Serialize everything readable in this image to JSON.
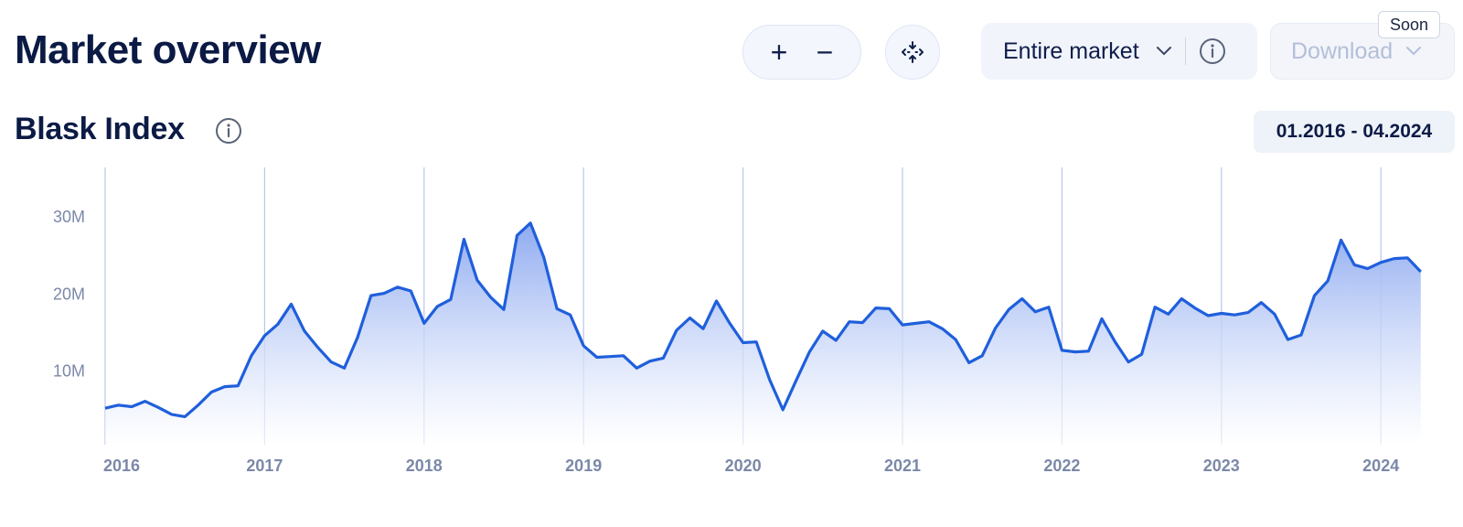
{
  "header": {
    "title": "Market overview",
    "zoom_in_label": "+",
    "zoom_out_label": "−",
    "fit_icon": "collapse-arrows-icon",
    "market_select_value": "Entire market",
    "download_label": "Download",
    "soon_badge": "Soon"
  },
  "section": {
    "title": "Blask Index",
    "date_range": "01.2016 - 04.2024"
  },
  "colors": {
    "line": "#1f5fdc",
    "area_top": "#8eaaf0",
    "area_bottom": "#ffffff",
    "grid": "#b9c6ea",
    "title": "#0b1a44"
  },
  "chart_data": {
    "type": "area",
    "title": "Blask Index",
    "xlabel": "",
    "ylabel": "",
    "x_ticks": [
      "2016",
      "2017",
      "2018",
      "2019",
      "2020",
      "2021",
      "2022",
      "2023",
      "2024"
    ],
    "y_ticks": [
      "10M",
      "20M",
      "30M"
    ],
    "y_tick_values": [
      10000000,
      20000000,
      30000000
    ],
    "xlim": [
      "2016-01",
      "2024-04"
    ],
    "ylim": [
      0,
      35000000
    ],
    "grid": "vertical lines at year starts",
    "legend": "none",
    "series": [
      {
        "x": [
          "2016-01",
          "2016-02",
          "2016-03",
          "2016-04",
          "2016-05",
          "2016-06",
          "2016-07",
          "2016-08",
          "2016-09",
          "2016-10",
          "2016-11",
          "2016-12",
          "2017-01",
          "2017-02",
          "2017-03",
          "2017-04",
          "2017-05",
          "2017-06",
          "2017-07",
          "2017-08",
          "2017-09",
          "2017-10",
          "2017-11",
          "2017-12",
          "2018-01",
          "2018-02",
          "2018-03",
          "2018-04",
          "2018-05",
          "2018-06",
          "2018-07",
          "2018-08",
          "2018-09",
          "2018-10",
          "2018-11",
          "2018-12",
          "2019-01",
          "2019-02",
          "2019-03",
          "2019-04",
          "2019-05",
          "2019-06",
          "2019-07",
          "2019-08",
          "2019-09",
          "2019-10",
          "2019-11",
          "2019-12",
          "2020-01",
          "2020-02",
          "2020-03",
          "2020-04",
          "2020-05",
          "2020-06",
          "2020-07",
          "2020-08",
          "2020-09",
          "2020-10",
          "2020-11",
          "2020-12",
          "2021-01",
          "2021-02",
          "2021-03",
          "2021-04",
          "2021-05",
          "2021-06",
          "2021-07",
          "2021-08",
          "2021-09",
          "2021-10",
          "2021-11",
          "2021-12",
          "2022-01",
          "2022-02",
          "2022-03",
          "2022-04",
          "2022-05",
          "2022-06",
          "2022-07",
          "2022-08",
          "2022-09",
          "2022-10",
          "2022-11",
          "2022-12",
          "2023-01",
          "2023-02",
          "2023-03",
          "2023-04",
          "2023-05",
          "2023-06",
          "2023-07",
          "2023-08",
          "2023-09",
          "2023-10",
          "2023-11",
          "2023-12",
          "2024-01",
          "2024-02",
          "2024-03",
          "2024-04"
        ],
        "values": [
          5200000,
          5600000,
          5400000,
          6100000,
          5300000,
          4400000,
          4100000,
          5600000,
          7300000,
          8000000,
          8100000,
          12000000,
          14600000,
          16100000,
          18700000,
          15200000,
          13100000,
          11200000,
          10400000,
          14400000,
          19800000,
          20100000,
          20900000,
          20400000,
          16200000,
          18400000,
          19300000,
          27100000,
          21800000,
          19600000,
          18000000,
          27600000,
          29200000,
          24800000,
          18100000,
          17300000,
          13300000,
          11800000,
          11900000,
          12000000,
          10400000,
          11300000,
          11700000,
          15300000,
          16900000,
          15500000,
          19100000,
          16200000,
          13700000,
          13800000,
          8900000,
          5000000,
          8800000,
          12500000,
          15200000,
          14000000,
          16400000,
          16300000,
          18200000,
          18100000,
          16000000,
          16200000,
          16400000,
          15500000,
          14100000,
          11100000,
          12000000,
          15600000,
          18000000,
          19400000,
          17700000,
          18300000,
          12700000,
          12500000,
          12600000,
          16800000,
          13800000,
          11200000,
          12200000,
          18300000,
          17400000,
          19400000,
          18200000,
          17200000,
          17500000,
          17300000,
          17600000,
          18900000,
          17400000,
          14100000,
          14700000,
          19800000,
          21700000,
          27000000,
          23800000,
          23300000,
          24100000,
          24600000,
          24700000,
          22900000
        ]
      }
    ]
  }
}
